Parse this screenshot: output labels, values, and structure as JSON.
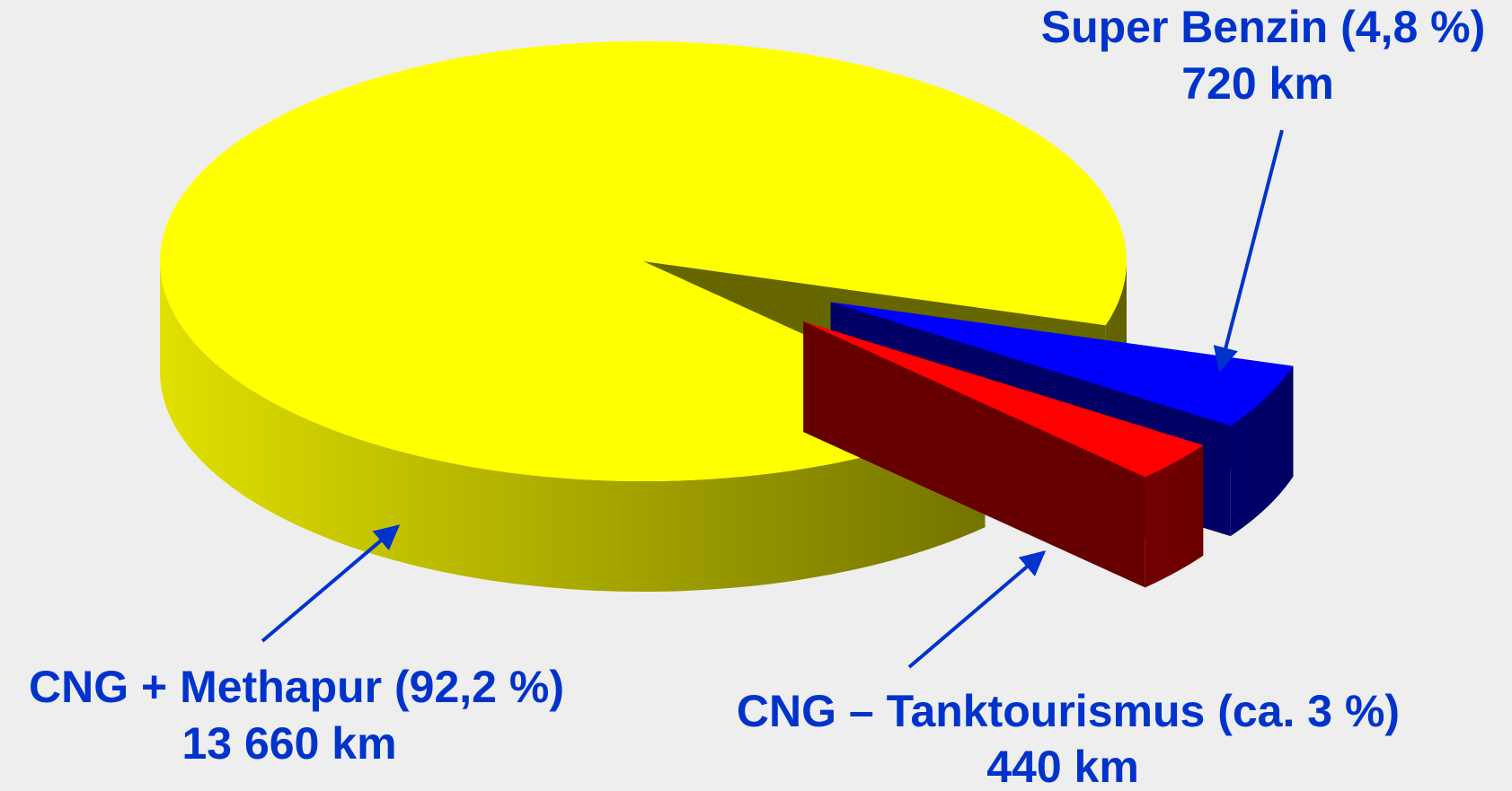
{
  "chart_data": {
    "type": "pie3d",
    "categories": [
      "CNG + Methapur",
      "Super Benzin",
      "CNG – Tanktourismus"
    ],
    "values": [
      92.2,
      4.8,
      3
    ],
    "value_labels": [
      "(92,2 %)",
      "(4,8 %)",
      "(ca. 3 %)"
    ],
    "distances": [
      13660,
      720,
      440
    ],
    "distance_labels": [
      "13 660 km",
      "720 km",
      "440 km"
    ],
    "colors": [
      "#ffff00",
      "#0000ff",
      "#ff0000"
    ],
    "exploded": [
      false,
      true,
      true
    ]
  }
}
